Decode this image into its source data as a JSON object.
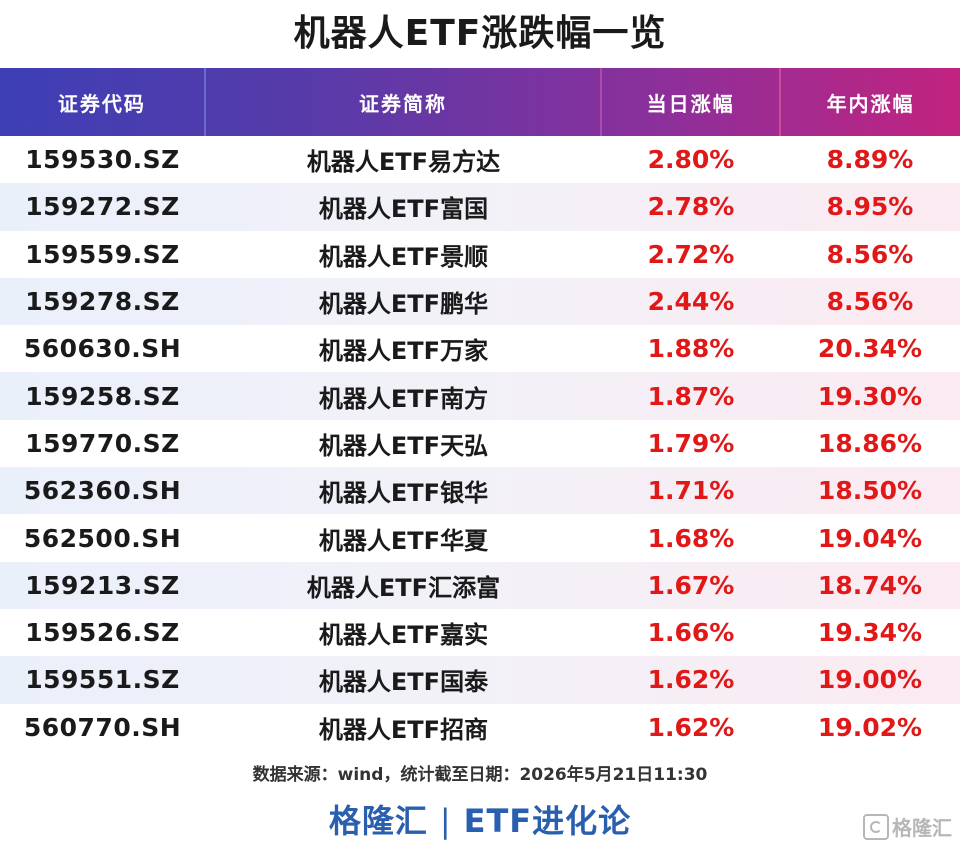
{
  "title": "机器人ETF涨跌幅一览",
  "table": {
    "headers": [
      "证券代码",
      "证券简称",
      "当日涨幅",
      "年内涨幅"
    ],
    "rows": [
      {
        "code": "159530.SZ",
        "name": "机器人ETF易方达",
        "day": "2.80%",
        "ytd": "8.89%"
      },
      {
        "code": "159272.SZ",
        "name": "机器人ETF富国",
        "day": "2.78%",
        "ytd": "8.95%"
      },
      {
        "code": "159559.SZ",
        "name": "机器人ETF景顺",
        "day": "2.72%",
        "ytd": "8.56%"
      },
      {
        "code": "159278.SZ",
        "name": "机器人ETF鹏华",
        "day": "2.44%",
        "ytd": "8.56%"
      },
      {
        "code": "560630.SH",
        "name": "机器人ETF万家",
        "day": "1.88%",
        "ytd": "20.34%"
      },
      {
        "code": "159258.SZ",
        "name": "机器人ETF南方",
        "day": "1.87%",
        "ytd": "19.30%"
      },
      {
        "code": "159770.SZ",
        "name": "机器人ETF天弘",
        "day": "1.79%",
        "ytd": "18.86%"
      },
      {
        "code": "562360.SH",
        "name": "机器人ETF银华",
        "day": "1.71%",
        "ytd": "18.50%"
      },
      {
        "code": "562500.SH",
        "name": "机器人ETF华夏",
        "day": "1.68%",
        "ytd": "19.04%"
      },
      {
        "code": "159213.SZ",
        "name": "机器人ETF汇添富",
        "day": "1.67%",
        "ytd": "18.74%"
      },
      {
        "code": "159526.SZ",
        "name": "机器人ETF嘉实",
        "day": "1.66%",
        "ytd": "19.34%"
      },
      {
        "code": "159551.SZ",
        "name": "机器人ETF国泰",
        "day": "1.62%",
        "ytd": "19.00%"
      },
      {
        "code": "560770.SH",
        "name": "机器人ETF招商",
        "day": "1.62%",
        "ytd": "19.02%"
      }
    ]
  },
  "source": "数据来源：wind，统计截至日期：2026年5月21日11:30",
  "footer": {
    "left": "格隆汇",
    "separator": "|",
    "right": "ETF进化论"
  },
  "watermark": {
    "icon": "gelonghui-logo-icon",
    "text": "格隆汇"
  },
  "colors": {
    "positive": "#e01818",
    "header_start": "#3d3fb5",
    "header_end": "#c2237f",
    "footer": "#2a5fb0"
  }
}
